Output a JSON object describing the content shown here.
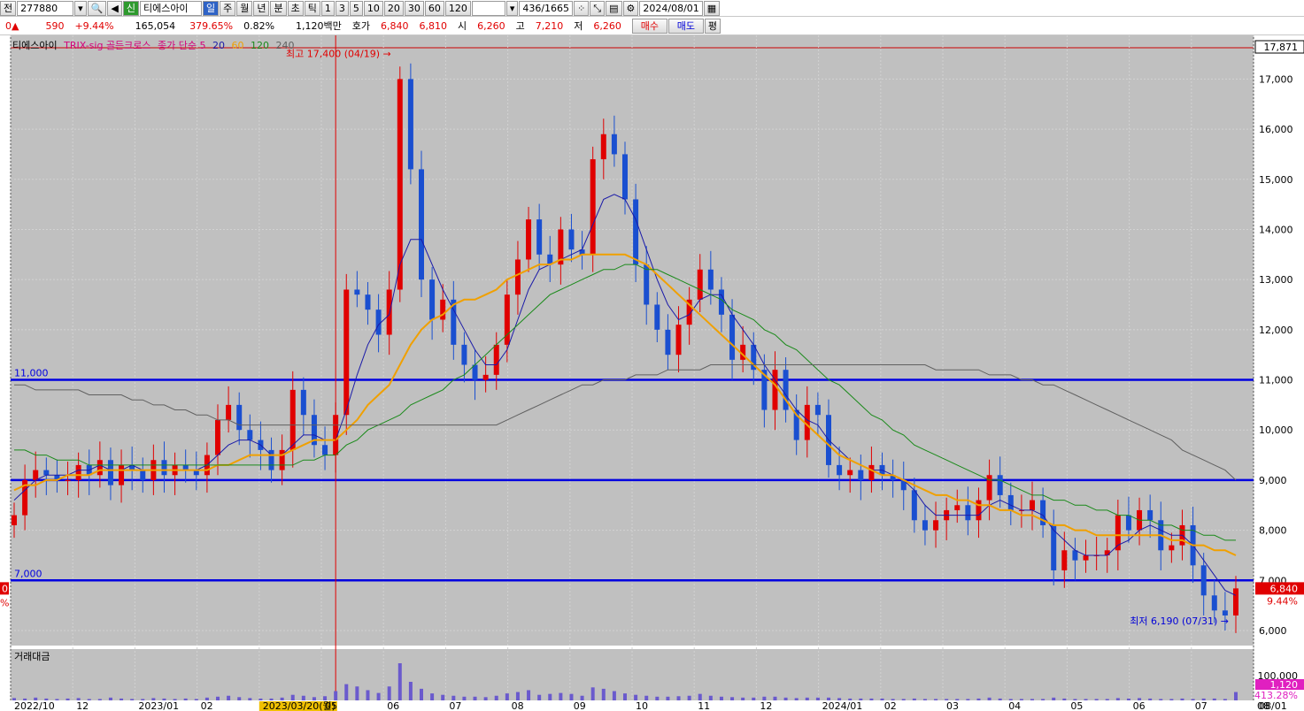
{
  "toolbar": {
    "market_label": "전",
    "code": "277880",
    "search_icon": "search-icon",
    "sound_icon": "speaker-icon",
    "new_badge": "신",
    "stock_name": "티에스아이",
    "periods": [
      "일",
      "주",
      "월",
      "년",
      "분",
      "초",
      "틱"
    ],
    "active_period": "일",
    "intervals": [
      "1",
      "3",
      "5",
      "10",
      "20",
      "30",
      "60",
      "120"
    ],
    "page_counter": "436/1665",
    "date": "2024/08/01"
  },
  "quote": {
    "change_prefix": "0▲",
    "change": "590",
    "change_pct": "+9.44%",
    "volume": "165,054",
    "vol_ratio": "379.65%",
    "turnover": "0.82%",
    "amount": "1,120백만",
    "bid_label": "호가",
    "bid1": "6,840",
    "bid2": "6,810",
    "open_label": "시",
    "open": "6,260",
    "high_label": "고",
    "high": "7,210",
    "low_label": "저",
    "low": "6,260",
    "buy": "매수",
    "sell": "매도",
    "eval": "평"
  },
  "legend": {
    "name": "티에스아이",
    "indicator": "TRIX-sig 골든크로스",
    "ma_title": "종가 단순 5",
    "ma_periods": [
      "20",
      "60",
      "120",
      "240"
    ],
    "ma_colors": [
      "#1a1aa8",
      "#f0a000",
      "#1a8a1a",
      "#606060"
    ]
  },
  "annotations": {
    "high": "최고 17,400 (04/19)",
    "low": "최저 6,190 (07/31)",
    "hline_labels": [
      "11,000",
      "7,000"
    ],
    "current_value": "17,871",
    "current_price": "6,840",
    "current_pct": "9.44%",
    "volume_panel": "거래대금",
    "volume_tick": "100,000",
    "volume_current": "1,120",
    "volume_pct": "413.28%",
    "left_price_tag": "0",
    "left_pct_tag": "%"
  },
  "colors": {
    "up": "#e00000",
    "down": "#1a4fd0",
    "hline": "#0000e0",
    "plot_bg": "#c0c0c0",
    "ma20": "#1a1aa8",
    "ma60": "#f0a000",
    "ma120": "#1a8a1a",
    "ma240": "#606060"
  },
  "chart_data": {
    "type": "candlestick",
    "title": "",
    "y_ticks": [
      "17,000",
      "16,000",
      "15,000",
      "14,000",
      "13,000",
      "12,000",
      "11,000",
      "10,000",
      "9,000",
      "8,000",
      "7,000",
      "6,000"
    ],
    "ylim": [
      5700,
      17871
    ],
    "x_ticks": [
      "2022/10",
      "12",
      "2023/01",
      "02",
      "2023/03/20(월)",
      "05",
      "06",
      "07",
      "08",
      "09",
      "10",
      "11",
      "12",
      "2024/01",
      "02",
      "03",
      "04",
      "05",
      "06",
      "07",
      "08"
    ],
    "x_tick_right": "08/01",
    "horizontal_lines": [
      11000,
      9000,
      7000
    ],
    "series": [
      {
        "name": "close",
        "values": [
          8300,
          9000,
          9200,
          9100,
          9000,
          9000,
          9300,
          9100,
          9400,
          8900,
          9300,
          9200,
          9000,
          9400,
          9100,
          9300,
          9200,
          9100,
          9500,
          10200,
          10500,
          10000,
          9800,
          9600,
          9200,
          9600,
          10800,
          10300,
          9700,
          9500,
          10300,
          12800,
          12700,
          12400,
          11900,
          12800,
          17000,
          15200,
          13000,
          12200,
          12600,
          11700,
          11300,
          11000,
          11100,
          11700,
          12700,
          13400,
          14200,
          13500,
          13300,
          14000,
          13600,
          13500,
          15400,
          15900,
          15500,
          14600,
          13300,
          12500,
          12000,
          11500,
          12100,
          12600,
          13200,
          12800,
          12300,
          11400,
          11700,
          11200,
          10400,
          11200,
          10400,
          9800,
          10500,
          10300,
          9300,
          9100,
          9200,
          9000,
          9300,
          9100,
          9000,
          8800,
          8200,
          8000,
          8200,
          8400,
          8500,
          8200,
          8600,
          9100,
          8700,
          8400,
          8400,
          8600,
          8100,
          7200,
          7600,
          7400,
          7500,
          7500,
          7600,
          8300,
          8000,
          8400,
          8200,
          7600,
          7700,
          8100,
          7300,
          6700,
          6400,
          6300,
          6840
        ]
      },
      {
        "name": "20",
        "values": [
          8600,
          8800,
          9000,
          9100,
          9100,
          9100,
          9200,
          9200,
          9300,
          9200,
          9200,
          9300,
          9200,
          9200,
          9200,
          9200,
          9200,
          9200,
          9300,
          9500,
          9700,
          9800,
          9800,
          9700,
          9500,
          9500,
          9700,
          9900,
          9900,
          9800,
          9800,
          10400,
          11100,
          11700,
          12100,
          12300,
          13300,
          13800,
          13800,
          13300,
          12800,
          12400,
          12000,
          11600,
          11300,
          11300,
          11600,
          12200,
          12800,
          13200,
          13300,
          13400,
          13500,
          13600,
          14100,
          14600,
          14700,
          14600,
          14200,
          13600,
          13000,
          12500,
          12200,
          12300,
          12600,
          12700,
          12700,
          12300,
          12000,
          11700,
          11300,
          11000,
          10700,
          10400,
          10200,
          10100,
          9800,
          9600,
          9400,
          9300,
          9200,
          9200,
          9100,
          9000,
          8800,
          8500,
          8300,
          8300,
          8300,
          8300,
          8300,
          8500,
          8600,
          8500,
          8400,
          8400,
          8300,
          8000,
          7800,
          7600,
          7500,
          7500,
          7500,
          7700,
          7800,
          8000,
          8100,
          8000,
          7900,
          7900,
          7700,
          7400,
          7100,
          6800,
          6700
        ]
      },
      {
        "name": "60",
        "values": [
          8800,
          8900,
          8900,
          9000,
          9000,
          9100,
          9100,
          9100,
          9200,
          9200,
          9200,
          9200,
          9200,
          9200,
          9200,
          9200,
          9200,
          9200,
          9200,
          9300,
          9300,
          9400,
          9500,
          9500,
          9500,
          9500,
          9600,
          9700,
          9800,
          9800,
          9800,
          10000,
          10200,
          10500,
          10700,
          10900,
          11300,
          11700,
          12000,
          12200,
          12300,
          12500,
          12600,
          12600,
          12700,
          12800,
          13000,
          13100,
          13200,
          13300,
          13300,
          13400,
          13400,
          13500,
          13500,
          13500,
          13500,
          13500,
          13400,
          13300,
          13100,
          12900,
          12700,
          12500,
          12300,
          12100,
          11900,
          11700,
          11500,
          11300,
          11100,
          10900,
          10600,
          10300,
          10100,
          9900,
          9700,
          9500,
          9400,
          9300,
          9200,
          9100,
          9100,
          9000,
          8900,
          8800,
          8700,
          8700,
          8600,
          8600,
          8500,
          8500,
          8400,
          8400,
          8300,
          8300,
          8200,
          8100,
          8100,
          8000,
          8000,
          7900,
          7900,
          7900,
          7900,
          7900,
          7900,
          7900,
          7800,
          7800,
          7700,
          7700,
          7600,
          7600,
          7500
        ]
      },
      {
        "name": "120",
        "values": [
          9600,
          9600,
          9500,
          9500,
          9400,
          9400,
          9400,
          9300,
          9300,
          9300,
          9300,
          9300,
          9300,
          9300,
          9300,
          9300,
          9300,
          9300,
          9300,
          9300,
          9300,
          9300,
          9300,
          9300,
          9300,
          9300,
          9300,
          9400,
          9400,
          9500,
          9500,
          9700,
          9800,
          10000,
          10100,
          10200,
          10300,
          10500,
          10600,
          10700,
          10800,
          11000,
          11100,
          11300,
          11500,
          11700,
          11900,
          12100,
          12300,
          12500,
          12700,
          12800,
          12900,
          13000,
          13100,
          13200,
          13200,
          13300,
          13300,
          13200,
          13200,
          13100,
          13000,
          12900,
          12800,
          12700,
          12600,
          12400,
          12300,
          12200,
          12000,
          11900,
          11700,
          11600,
          11400,
          11200,
          11000,
          10900,
          10700,
          10500,
          10300,
          10200,
          10000,
          9900,
          9700,
          9600,
          9500,
          9400,
          9300,
          9200,
          9100,
          9000,
          9000,
          8900,
          8800,
          8700,
          8700,
          8600,
          8600,
          8500,
          8500,
          8400,
          8400,
          8300,
          8300,
          8200,
          8200,
          8100,
          8100,
          8000,
          8000,
          7900,
          7900,
          7800,
          7800
        ]
      },
      {
        "name": "240",
        "values": [
          10900,
          10900,
          10800,
          10800,
          10800,
          10800,
          10800,
          10700,
          10700,
          10700,
          10700,
          10600,
          10600,
          10500,
          10500,
          10400,
          10400,
          10300,
          10300,
          10200,
          10200,
          10100,
          10100,
          10100,
          10100,
          10100,
          10100,
          10100,
          10100,
          10100,
          10100,
          10100,
          10100,
          10100,
          10100,
          10100,
          10100,
          10100,
          10100,
          10100,
          10100,
          10100,
          10100,
          10100,
          10100,
          10100,
          10200,
          10300,
          10400,
          10500,
          10600,
          10700,
          10800,
          10900,
          10900,
          11000,
          11000,
          11000,
          11100,
          11100,
          11100,
          11200,
          11200,
          11200,
          11200,
          11300,
          11300,
          11300,
          11300,
          11300,
          11300,
          11300,
          11300,
          11300,
          11300,
          11300,
          11300,
          11300,
          11300,
          11300,
          11300,
          11300,
          11300,
          11300,
          11300,
          11300,
          11200,
          11200,
          11200,
          11200,
          11200,
          11100,
          11100,
          11100,
          11000,
          11000,
          10900,
          10900,
          10800,
          10700,
          10600,
          10500,
          10400,
          10300,
          10200,
          10100,
          10000,
          9900,
          9800,
          9600,
          9500,
          9400,
          9300,
          9200,
          9000
        ]
      }
    ],
    "volume": [
      5,
      4,
      6,
      4,
      3,
      4,
      5,
      3,
      3,
      6,
      4,
      3,
      3,
      5,
      4,
      3,
      4,
      3,
      6,
      8,
      10,
      7,
      5,
      4,
      4,
      6,
      12,
      10,
      7,
      9,
      20,
      35,
      30,
      22,
      16,
      30,
      80,
      40,
      25,
      15,
      12,
      10,
      8,
      8,
      7,
      10,
      15,
      18,
      22,
      12,
      14,
      16,
      14,
      10,
      28,
      25,
      20,
      15,
      12,
      10,
      8,
      8,
      9,
      10,
      14,
      10,
      8,
      7,
      6,
      6,
      8,
      8,
      6,
      5,
      6,
      6,
      6,
      5,
      4,
      4,
      4,
      4,
      3,
      3,
      4,
      3,
      3,
      3,
      3,
      3,
      4,
      6,
      4,
      3,
      3,
      3,
      3,
      6,
      4,
      3,
      3,
      3,
      3,
      5,
      4,
      5,
      4,
      3,
      3,
      4,
      3,
      4,
      4,
      3,
      18
    ]
  }
}
